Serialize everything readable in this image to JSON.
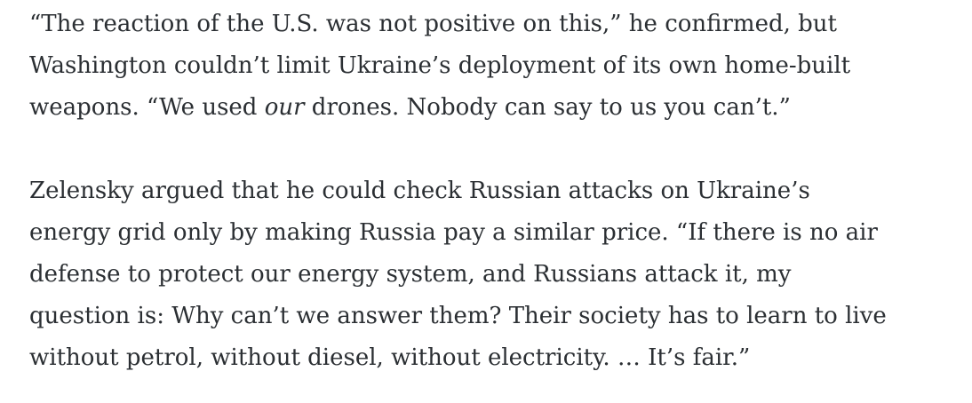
{
  "page": {
    "background_color": "#ffffff",
    "text_color": "#2b2f33"
  },
  "article": {
    "paragraphs": [
      {
        "lines": [
          [
            {
              "text": "“The reaction of the U.S. was not positive on this,” he confirmed, but"
            }
          ],
          [
            {
              "text": "Washington couldn’t limit Ukraine’s deployment of its own home-built"
            }
          ],
          [
            {
              "text": "weapons. “We used "
            },
            {
              "text": "our",
              "italic": true
            },
            {
              "text": " drones. Nobody can say to us you can’t.”"
            }
          ]
        ]
      },
      {
        "lines": [
          [
            {
              "text": "Zelensky argued that he could check Russian attacks on Ukraine’s"
            }
          ],
          [
            {
              "text": "energy grid only by making Russia pay a similar price. “If there is no air"
            }
          ],
          [
            {
              "text": "defense to protect our energy system, and Russians attack it, my"
            }
          ],
          [
            {
              "text": "question is: Why can’t we answer them? Their society has to learn to live"
            }
          ],
          [
            {
              "text": "without petrol, without diesel, without electricity. … It’s fair.”"
            }
          ]
        ]
      }
    ]
  }
}
